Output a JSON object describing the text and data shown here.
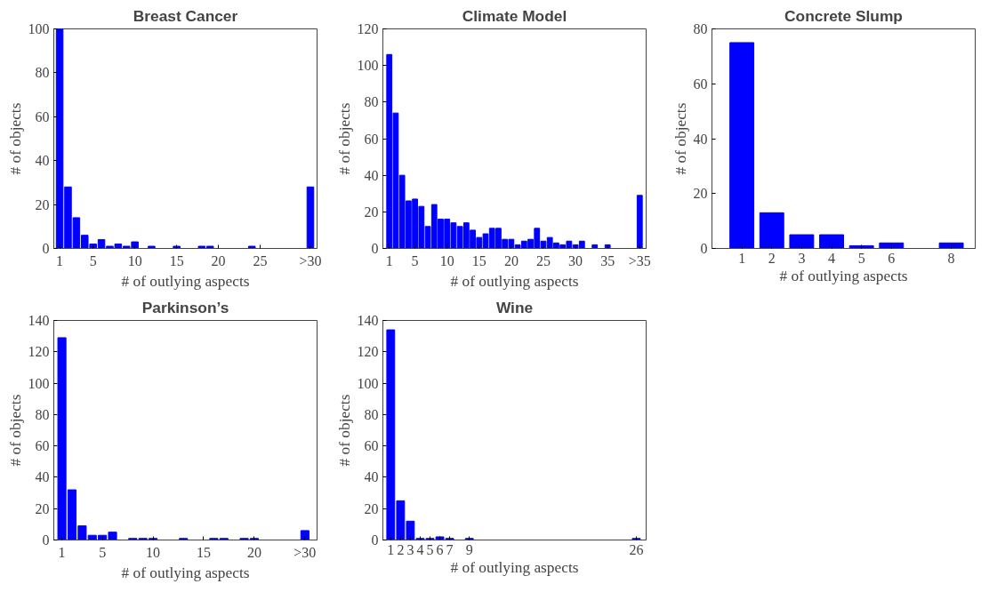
{
  "chart_data": [
    {
      "type": "bar",
      "title": "Breast Cancer",
      "xlabel": "# of outlying aspects",
      "ylabel": "# of objects",
      "color": "#0000ff",
      "grid": false,
      "x": [
        1,
        2,
        3,
        4,
        5,
        6,
        7,
        8,
        9,
        10,
        12,
        15,
        18,
        19,
        24,
        31
      ],
      "values": [
        100,
        28,
        14,
        6,
        2,
        4,
        1,
        2,
        1,
        3,
        1,
        1,
        1,
        1,
        1,
        28
      ],
      "xlim": [
        0.3,
        31.8
      ],
      "xticks": [
        1,
        5,
        10,
        15,
        20,
        25,
        {
          "value": 31,
          "label": ">30"
        }
      ],
      "ylim": [
        0,
        100
      ],
      "yticks": [
        0,
        20,
        40,
        60,
        80,
        100
      ]
    },
    {
      "type": "bar",
      "title": "Climate Model",
      "xlabel": "# of outlying aspects",
      "ylabel": "# of objects",
      "color": "#0000ff",
      "grid": false,
      "x": [
        1,
        2,
        3,
        4,
        5,
        6,
        7,
        8,
        9,
        10,
        11,
        12,
        13,
        14,
        15,
        16,
        17,
        18,
        19,
        20,
        21,
        22,
        23,
        24,
        25,
        26,
        27,
        28,
        29,
        30,
        31,
        33,
        35,
        40
      ],
      "values": [
        106,
        74,
        40,
        26,
        27,
        23,
        12,
        24,
        16,
        16,
        14,
        12,
        14,
        10,
        6,
        8,
        11,
        11,
        5,
        5,
        2,
        4,
        5,
        11,
        4,
        6,
        3,
        2,
        4,
        2,
        4,
        2,
        2,
        29
      ],
      "xlim": [
        0,
        41
      ],
      "xticks": [
        1,
        5,
        10,
        15,
        20,
        25,
        30,
        35,
        {
          "value": 40,
          "label": ">35"
        }
      ],
      "ylim": [
        0,
        120
      ],
      "yticks": [
        0,
        20,
        40,
        60,
        80,
        100,
        120
      ]
    },
    {
      "type": "bar",
      "title": "Concrete Slump",
      "xlabel": "# of outlying aspects",
      "ylabel": "# of objects",
      "color": "#0000ff",
      "grid": false,
      "x": [
        1,
        2,
        3,
        4,
        5,
        6,
        8
      ],
      "values": [
        75,
        13,
        5,
        5,
        1,
        2,
        2
      ],
      "xlim": [
        0,
        8.8
      ],
      "xticks": [
        1,
        2,
        3,
        4,
        5,
        6,
        8
      ],
      "ylim": [
        0,
        80
      ],
      "yticks": [
        0,
        20,
        40,
        60,
        80
      ]
    },
    {
      "type": "bar",
      "title": "Parkinson’s",
      "xlabel": "# of outlying aspects",
      "ylabel": "# of objects",
      "color": "#0000ff",
      "grid": false,
      "x": [
        1,
        2,
        3,
        4,
        5,
        6,
        8,
        9,
        10,
        13,
        16,
        17,
        19,
        20,
        25
      ],
      "values": [
        129,
        32,
        9,
        3,
        3,
        5,
        1,
        1,
        1,
        1,
        1,
        1,
        1,
        1,
        6
      ],
      "xlim": [
        0.2,
        26.2
      ],
      "xticks": [
        1,
        5,
        10,
        15,
        20,
        {
          "value": 25,
          "label": ">30"
        }
      ],
      "ylim": [
        0,
        140
      ],
      "yticks": [
        0,
        20,
        40,
        60,
        80,
        100,
        120,
        140
      ]
    },
    {
      "type": "bar",
      "title": "Wine",
      "xlabel": "# of outlying aspects",
      "ylabel": "# of objects",
      "color": "#0000ff",
      "grid": false,
      "x": [
        1,
        2,
        3,
        4,
        5,
        6,
        7,
        9,
        26
      ],
      "values": [
        134,
        25,
        12,
        1,
        1,
        2,
        1,
        1,
        1
      ],
      "xlim": [
        0.2,
        27
      ],
      "xticks": [
        1,
        2,
        3,
        4,
        5,
        6,
        7,
        9,
        26
      ],
      "ylim": [
        0,
        140
      ],
      "yticks": [
        0,
        20,
        40,
        60,
        80,
        100,
        120,
        140
      ]
    }
  ]
}
